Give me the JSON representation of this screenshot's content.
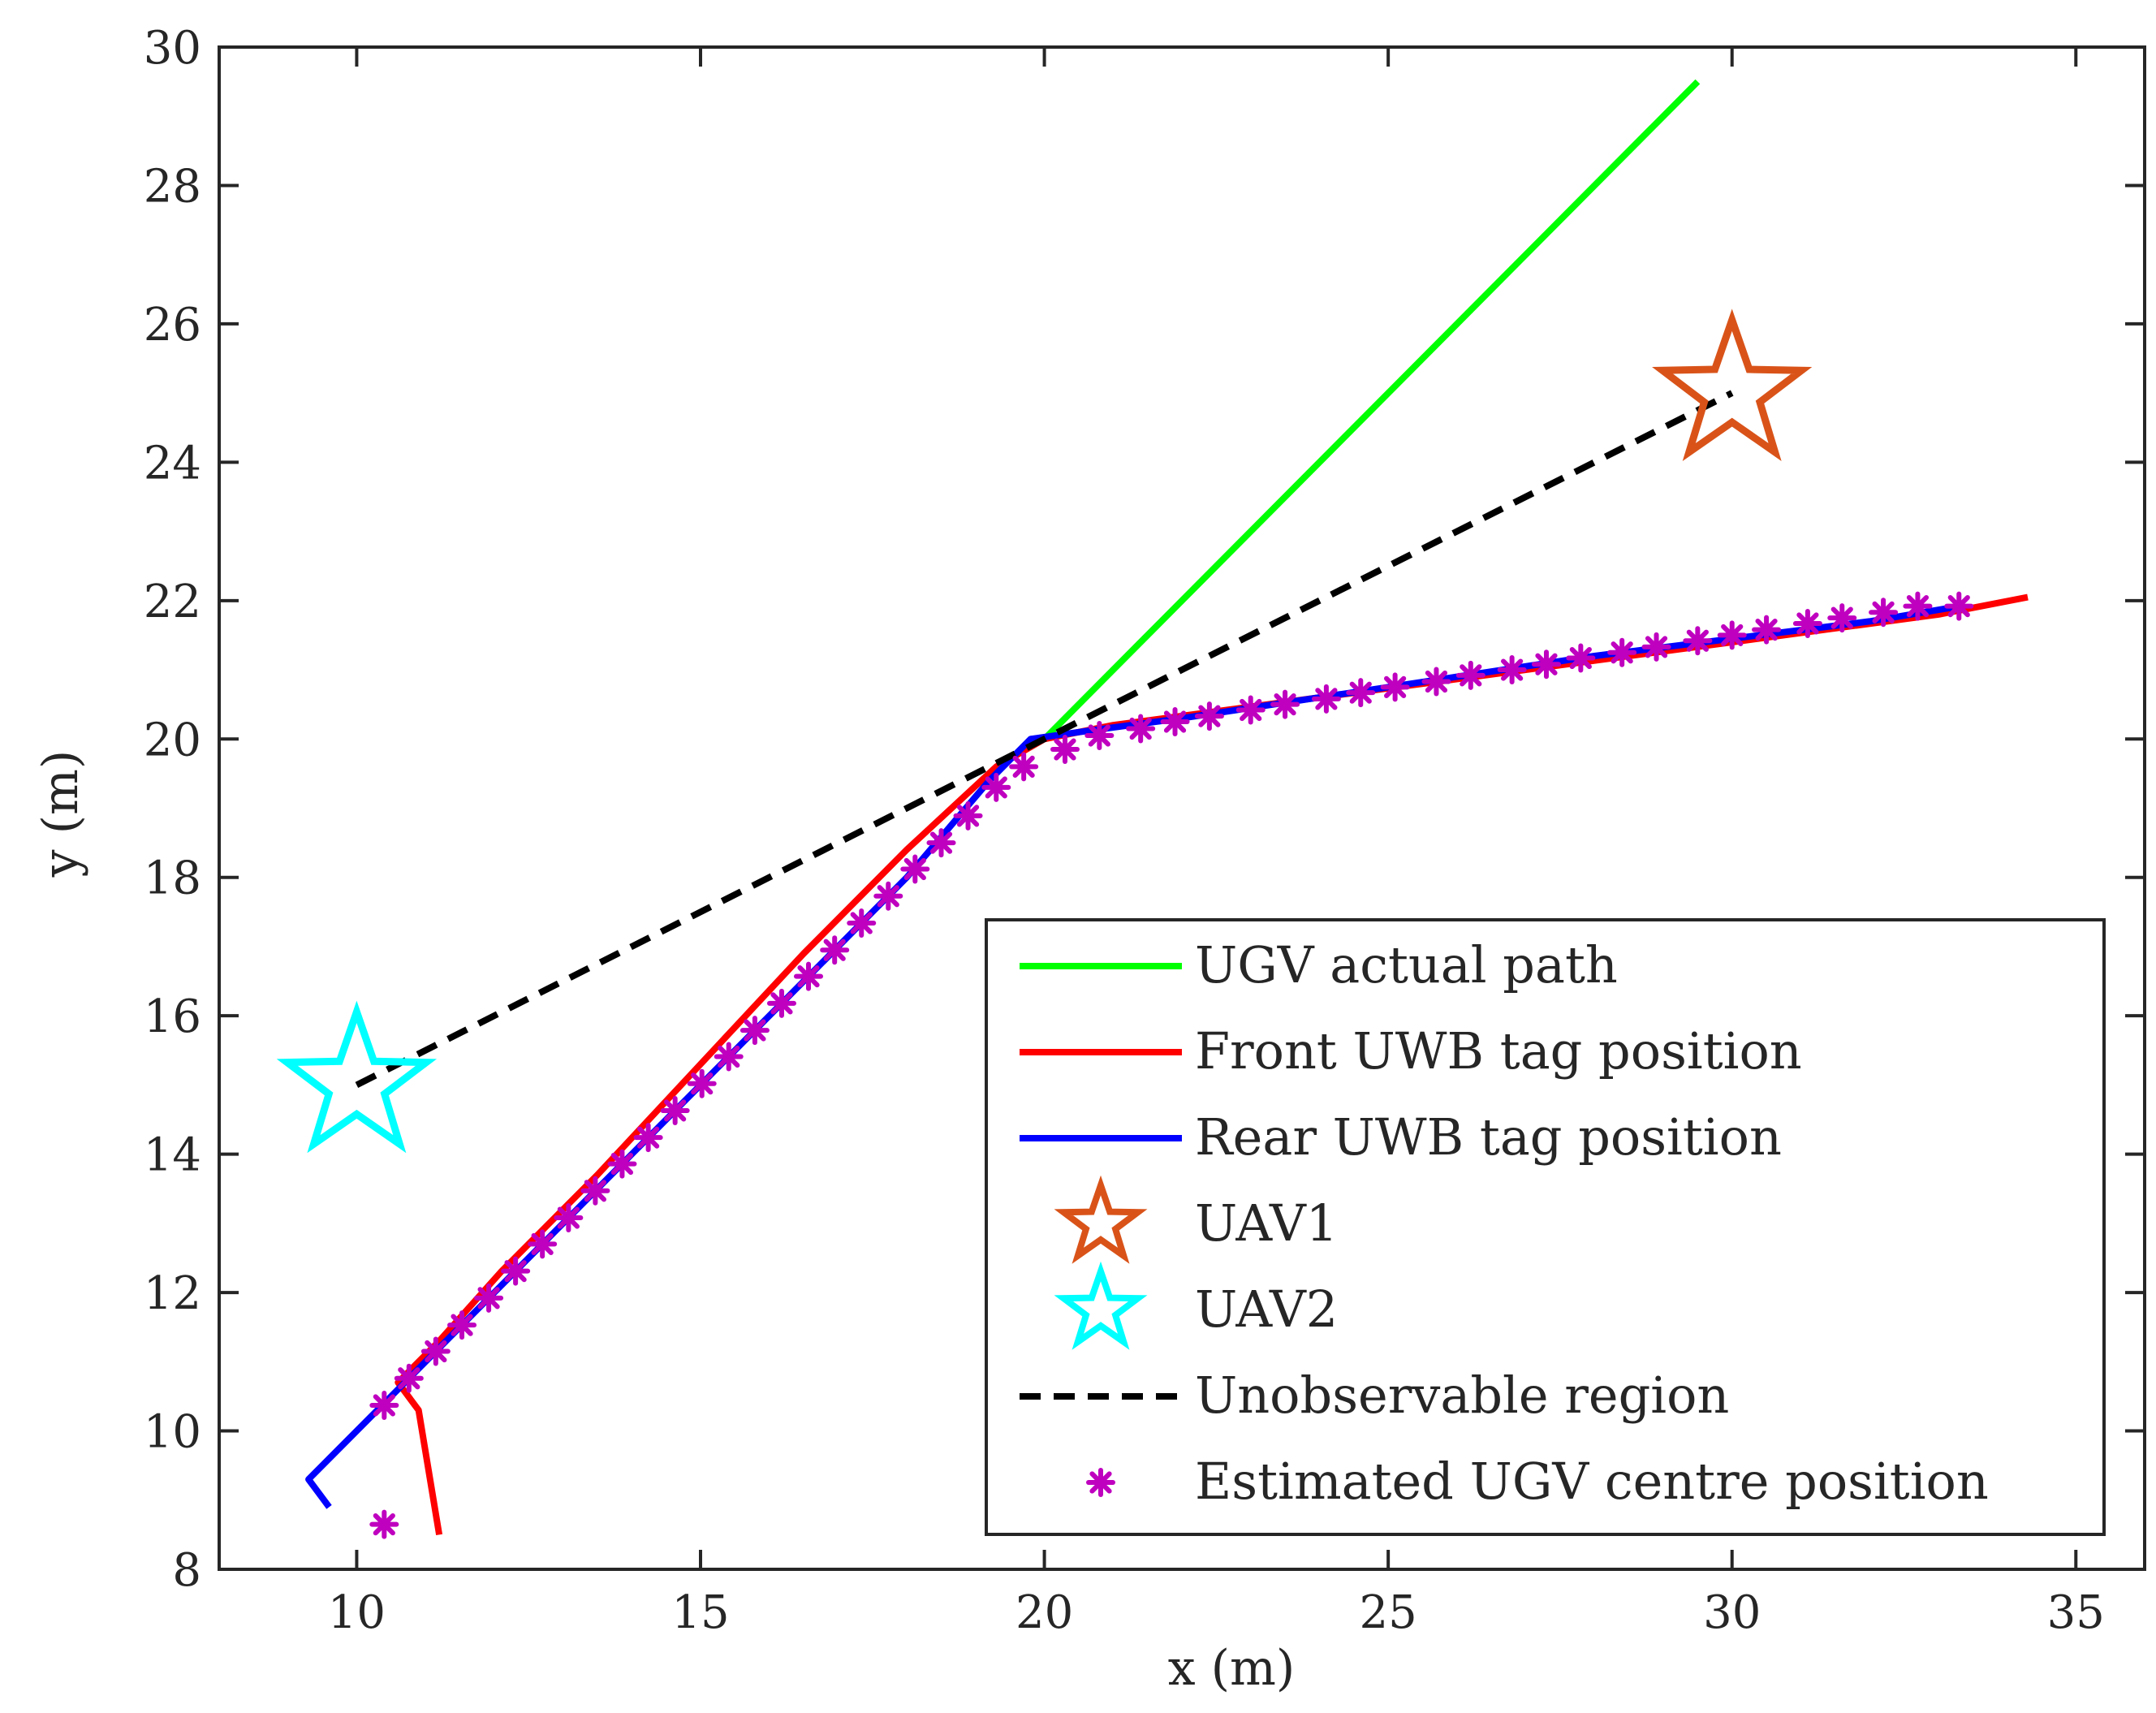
{
  "chart_data": {
    "type": "line",
    "title": "",
    "xlabel": "x (m)",
    "ylabel": "y (m)",
    "xlim": [
      8,
      36
    ],
    "ylim": [
      8,
      30
    ],
    "xticks": [
      10,
      15,
      20,
      25,
      30,
      35
    ],
    "yticks": [
      8,
      10,
      12,
      14,
      16,
      18,
      20,
      22,
      24,
      26,
      28,
      30
    ],
    "grid": false,
    "legend_position": "bottom-right",
    "series": [
      {
        "name": "UGV actual path",
        "style": "line",
        "color": "#00ff00",
        "x": [
          20.0,
          29.5
        ],
        "y": [
          20.0,
          29.5
        ]
      },
      {
        "name": "Front UWB tag position",
        "style": "line",
        "color": "#ff0000",
        "x": [
          11.2,
          10.9,
          10.6,
          11.2,
          12.1,
          13.5,
          15.0,
          16.5,
          18.0,
          19.3,
          20.0,
          21.0,
          22.5,
          24.0,
          25.5,
          27.0,
          28.5,
          30.0,
          31.5,
          33.0,
          34.3
        ],
        "y": [
          8.5,
          10.3,
          10.7,
          11.3,
          12.3,
          13.7,
          15.3,
          16.9,
          18.4,
          19.6,
          20.0,
          20.2,
          20.4,
          20.6,
          20.8,
          21.0,
          21.2,
          21.4,
          21.6,
          21.8,
          22.05
        ]
      },
      {
        "name": "Rear UWB tag position",
        "style": "line",
        "color": "#0000ff",
        "x": [
          9.6,
          9.3,
          10.5,
          12.0,
          13.5,
          15.0,
          16.5,
          18.0,
          19.2,
          19.8,
          20.5,
          22.0,
          24.0,
          26.0,
          28.0,
          30.0,
          32.0,
          33.2
        ],
        "y": [
          8.9,
          9.3,
          10.5,
          12.0,
          13.5,
          15.0,
          16.5,
          18.0,
          19.4,
          20.0,
          20.1,
          20.3,
          20.6,
          20.9,
          21.2,
          21.45,
          21.7,
          21.9
        ]
      },
      {
        "name": "UAV1",
        "style": "star",
        "color": "#d95319",
        "x": [
          30.0
        ],
        "y": [
          25.0
        ]
      },
      {
        "name": "UAV2",
        "style": "star",
        "color": "#00ffff",
        "x": [
          10.0
        ],
        "y": [
          15.0
        ]
      },
      {
        "name": "Unobservable region",
        "style": "dashed",
        "color": "#000000",
        "x": [
          10.0,
          30.0
        ],
        "y": [
          15.0,
          25.0
        ]
      },
      {
        "name": "Estimated UGV centre position",
        "style": "asterisk",
        "color": "#bf00bf",
        "x": [
          10.4,
          10.4,
          10.76,
          11.15,
          11.53,
          11.92,
          12.31,
          12.7,
          13.08,
          13.47,
          13.86,
          14.24,
          14.63,
          15.02,
          15.41,
          15.79,
          16.18,
          16.57,
          16.95,
          17.34,
          17.73,
          18.12,
          18.5,
          18.89,
          19.3,
          19.7,
          20.3,
          20.8,
          21.4,
          21.9,
          22.4,
          23.0,
          23.5,
          24.1,
          24.6,
          25.1,
          25.7,
          26.2,
          26.8,
          27.3,
          27.8,
          28.4,
          28.9,
          29.5,
          30.0,
          30.5,
          31.1,
          31.6,
          32.2,
          32.7,
          33.3
        ],
        "y": [
          8.65,
          10.37,
          10.76,
          11.15,
          11.53,
          11.92,
          12.31,
          12.7,
          13.08,
          13.47,
          13.86,
          14.24,
          14.63,
          15.02,
          15.41,
          15.79,
          16.18,
          16.57,
          16.95,
          17.34,
          17.73,
          18.12,
          18.5,
          18.89,
          19.3,
          19.6,
          19.85,
          20.05,
          20.15,
          20.25,
          20.33,
          20.42,
          20.5,
          20.58,
          20.67,
          20.75,
          20.83,
          20.92,
          21.0,
          21.08,
          21.17,
          21.25,
          21.33,
          21.42,
          21.5,
          21.58,
          21.67,
          21.75,
          21.83,
          21.92,
          21.92
        ]
      }
    ]
  }
}
